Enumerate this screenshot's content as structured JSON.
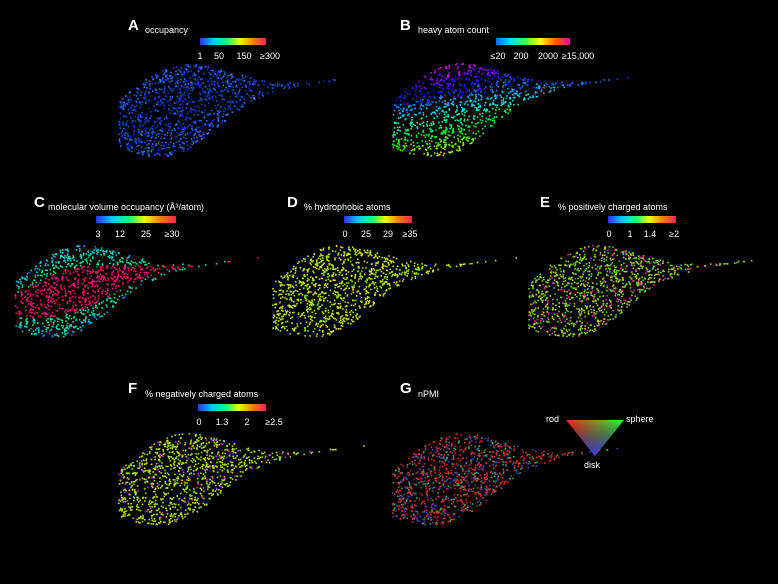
{
  "panels": {
    "a": {
      "letter": "A",
      "title": "occupancy",
      "ticks": [
        "1",
        "50",
        "150",
        "≥300"
      ]
    },
    "b": {
      "letter": "B",
      "title": "heavy atom count",
      "ticks": [
        "≤20",
        "200",
        "2000",
        "≥15,000"
      ]
    },
    "c": {
      "letter": "C",
      "title": "molecular volume occupancy (Å³/atom)",
      "ticks": [
        "3",
        "12",
        "25",
        "≥30"
      ]
    },
    "d": {
      "letter": "D",
      "title": "% hydrophobic atoms",
      "ticks": [
        "0",
        "25",
        "29",
        "≥35"
      ]
    },
    "e": {
      "letter": "E",
      "title": "% positively charged atoms",
      "ticks": [
        "0",
        "1",
        "1.4",
        "≥2"
      ]
    },
    "f": {
      "letter": "F",
      "title": "% negatively charged atoms",
      "ticks": [
        "0",
        "1.3",
        "2",
        "≥2.5"
      ]
    },
    "g": {
      "letter": "G",
      "title": "nPMI",
      "triangle": {
        "rod": "rod",
        "sphere": "sphere",
        "disk": "disk"
      }
    }
  },
  "colors": {
    "background": "#000000",
    "text": "#ffffff"
  }
}
